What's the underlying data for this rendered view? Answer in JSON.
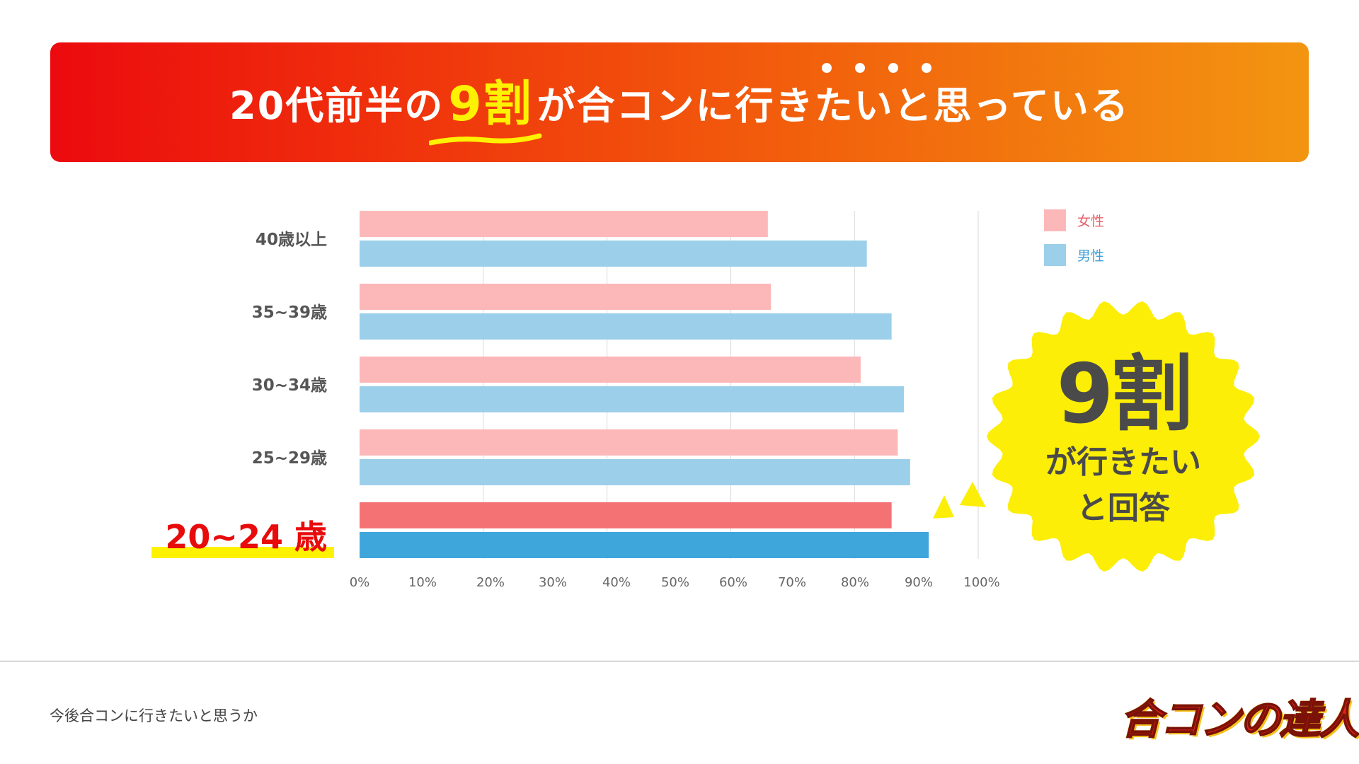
{
  "banner": {
    "title_prefix": "20代前半の",
    "title_highlight": "9割",
    "title_suffix": "が合コンに行きたいと思っている"
  },
  "badge": {
    "big": "9割",
    "line1": "が行きたい",
    "line2": "と回答"
  },
  "footer": {
    "caption": "今後合コンに行きたいと思うか",
    "logo": "合コンの達人"
  },
  "colors": {
    "female": "#fcb8b9",
    "male": "#9ccfea",
    "female_highlight": "#f47274",
    "male_highlight": "#3fa6dc",
    "badge": "#fcee06",
    "accent_red": "#e80b0b"
  },
  "chart_data": {
    "type": "bar",
    "orientation": "horizontal",
    "categories": [
      "40歳以上",
      "35~39歳",
      "30~34歳",
      "25~29歳",
      "20~24 歳"
    ],
    "highlight_category": "20~24 歳",
    "series": [
      {
        "name": "女性",
        "values": [
          66,
          66.5,
          81,
          87,
          86
        ]
      },
      {
        "name": "男性",
        "values": [
          82,
          86,
          88,
          89,
          92
        ]
      }
    ],
    "x_ticks": [
      "0%",
      "10%",
      "20%",
      "30%",
      "40%",
      "50%",
      "60%",
      "70%",
      "80%",
      "90%",
      "100%"
    ],
    "xlim": [
      0,
      100
    ],
    "legend": [
      "女性",
      "男性"
    ],
    "legend_position": "top-right",
    "grid": true
  }
}
